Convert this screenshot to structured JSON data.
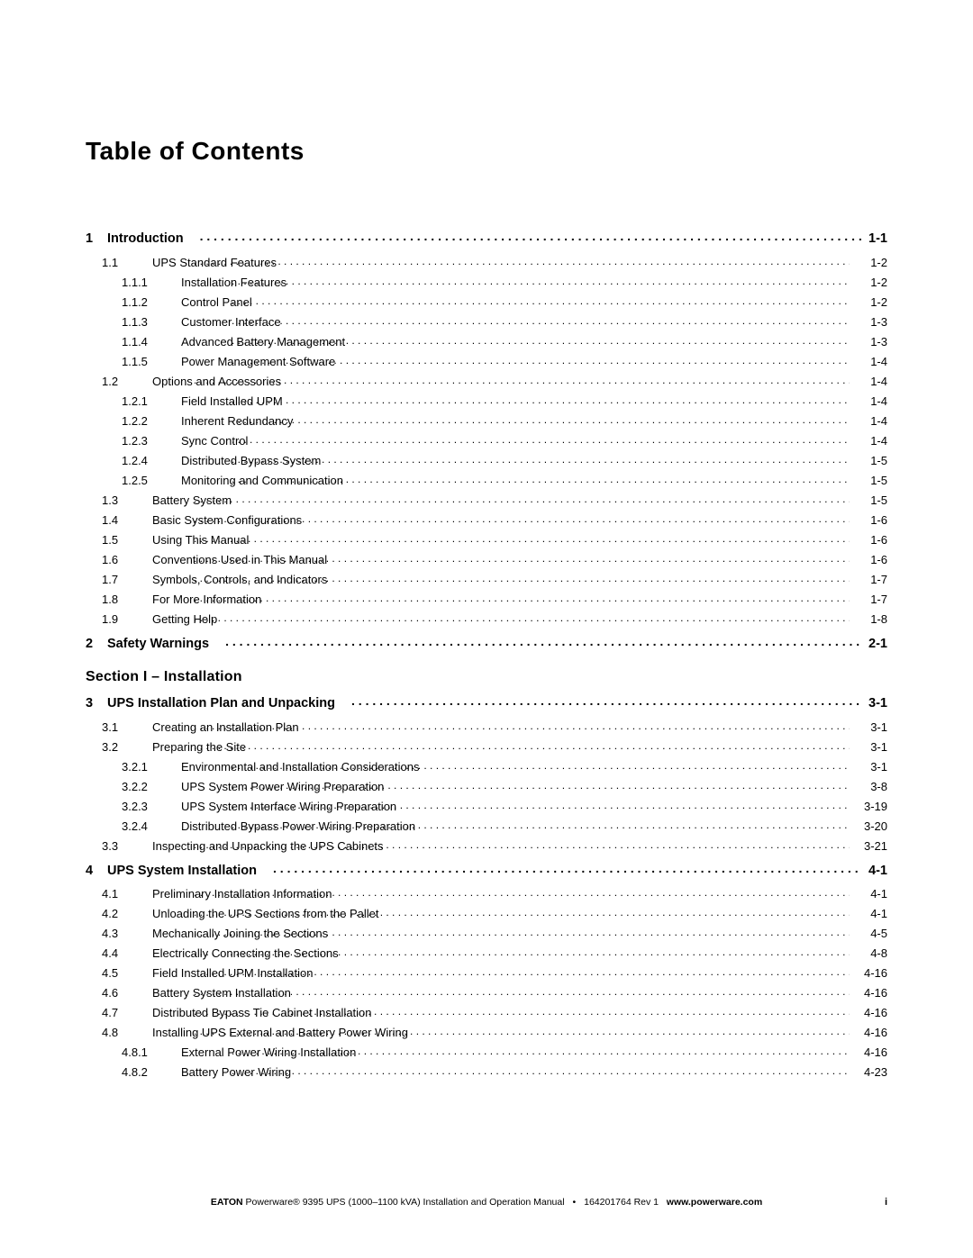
{
  "title": "Table of Contents",
  "section_heading": "Section I – Installation",
  "footer": {
    "brand": "EATON",
    "product": "Powerware® 9395 UPS (1000–1100 kVA) Installation and Operation Manual",
    "docnum": "164201764 Rev 1",
    "url": "www.powerware.com",
    "page_roman": "i"
  },
  "chapters": [
    {
      "num": "1",
      "title": "Introduction",
      "page": "1-1",
      "before_section_heading": true,
      "subs": [
        {
          "num": "1.1",
          "title": "UPS Standard Features",
          "page": "1-2",
          "level": 1
        },
        {
          "num": "1.1.1",
          "title": "Installation Features",
          "page": "1-2",
          "level": 2
        },
        {
          "num": "1.1.2",
          "title": "Control Panel",
          "page": "1-2",
          "level": 2
        },
        {
          "num": "1.1.3",
          "title": "Customer Interface",
          "page": "1-3",
          "level": 2
        },
        {
          "num": "1.1.4",
          "title": "Advanced Battery Management",
          "page": "1-3",
          "level": 2
        },
        {
          "num": "1.1.5",
          "title": "Power Management Software",
          "page": "1-4",
          "level": 2
        },
        {
          "num": "1.2",
          "title": "Options and Accessories",
          "page": "1-4",
          "level": 1
        },
        {
          "num": "1.2.1",
          "title": "Field Installed UPM",
          "page": "1-4",
          "level": 2
        },
        {
          "num": "1.2.2",
          "title": "Inherent Redundancy",
          "page": "1-4",
          "level": 2
        },
        {
          "num": "1.2.3",
          "title": "Sync Control",
          "page": "1-4",
          "level": 2
        },
        {
          "num": "1.2.4",
          "title": "Distributed Bypass System",
          "page": "1-5",
          "level": 2
        },
        {
          "num": "1.2.5",
          "title": "Monitoring and Communication",
          "page": "1-5",
          "level": 2
        },
        {
          "num": "1.3",
          "title": "Battery System",
          "page": "1-5",
          "level": 1
        },
        {
          "num": "1.4",
          "title": "Basic System Configurations",
          "page": "1-6",
          "level": 1
        },
        {
          "num": "1.5",
          "title": "Using This Manual",
          "page": "1-6",
          "level": 1
        },
        {
          "num": "1.6",
          "title": "Conventions Used in This Manual",
          "page": "1-6",
          "level": 1
        },
        {
          "num": "1.7",
          "title": "Symbols, Controls, and Indicators",
          "page": "1-7",
          "level": 1
        },
        {
          "num": "1.8",
          "title": "For More Information",
          "page": "1-7",
          "level": 1
        },
        {
          "num": "1.9",
          "title": "Getting Help",
          "page": "1-8",
          "level": 1
        }
      ]
    },
    {
      "num": "2",
      "title": "Safety Warnings",
      "page": "2-1",
      "before_section_heading": true,
      "subs": []
    },
    {
      "num": "3",
      "title": "UPS Installation Plan and Unpacking",
      "page": "3-1",
      "before_section_heading": false,
      "subs": [
        {
          "num": "3.1",
          "title": "Creating an Installation Plan",
          "page": "3-1",
          "level": 1
        },
        {
          "num": "3.2",
          "title": "Preparing the Site",
          "page": "3-1",
          "level": 1
        },
        {
          "num": "3.2.1",
          "title": "Environmental and Installation Considerations",
          "page": "3-1",
          "level": 2
        },
        {
          "num": "3.2.2",
          "title": "UPS System Power Wiring Preparation",
          "page": "3-8",
          "level": 2
        },
        {
          "num": "3.2.3",
          "title": "UPS System Interface Wiring Preparation",
          "page": "3-19",
          "level": 2
        },
        {
          "num": "3.2.4",
          "title": "Distributed Bypass Power Wiring Preparation",
          "page": "3-20",
          "level": 2
        },
        {
          "num": "3.3",
          "title": "Inspecting and Unpacking the UPS Cabinets",
          "page": "3-21",
          "level": 1
        }
      ]
    },
    {
      "num": "4",
      "title": "UPS System Installation",
      "page": "4-1",
      "before_section_heading": false,
      "subs": [
        {
          "num": "4.1",
          "title": "Preliminary Installation Information",
          "page": "4-1",
          "level": 1
        },
        {
          "num": "4.2",
          "title": "Unloading the UPS Sections from the Pallet",
          "page": "4-1",
          "level": 1
        },
        {
          "num": "4.3",
          "title": "Mechanically Joining the Sections",
          "page": "4-5",
          "level": 1
        },
        {
          "num": "4.4",
          "title": "Electrically Connecting the Sections",
          "page": "4-8",
          "level": 1
        },
        {
          "num": "4.5",
          "title": "Field Installed UPM Installation",
          "page": "4-16",
          "level": 1
        },
        {
          "num": "4.6",
          "title": "Battery System Installation",
          "page": "4-16",
          "level": 1
        },
        {
          "num": "4.7",
          "title": "Distributed Bypass Tie Cabinet Installation",
          "page": "4-16",
          "level": 1
        },
        {
          "num": "4.8",
          "title": "Installing UPS External and Battery Power Wiring",
          "page": "4-16",
          "level": 1
        },
        {
          "num": "4.8.1",
          "title": "External Power Wiring Installation",
          "page": "4-16",
          "level": 2
        },
        {
          "num": "4.8.2",
          "title": "Battery Power Wiring",
          "page": "4-23",
          "level": 2
        }
      ]
    }
  ]
}
